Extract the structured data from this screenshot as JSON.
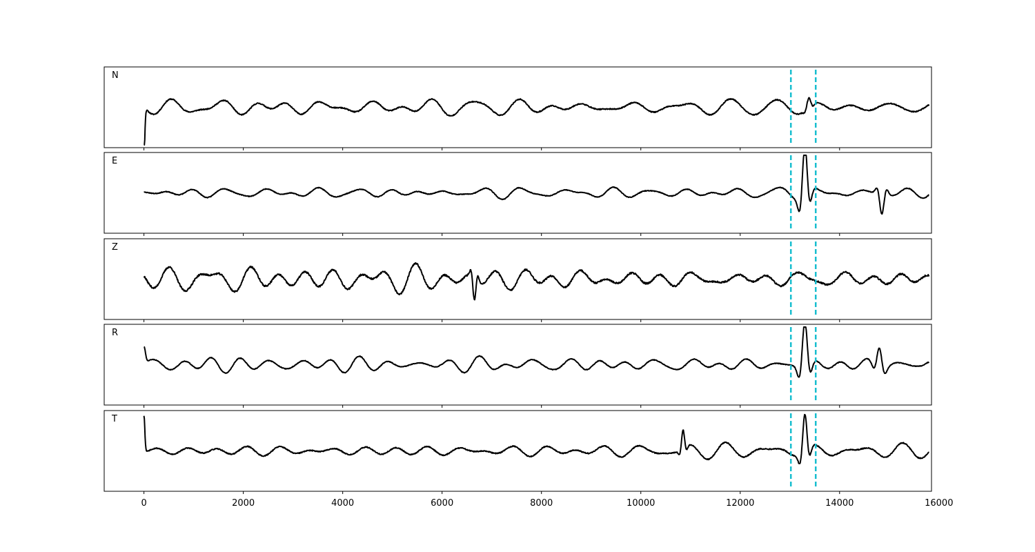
{
  "chart_data": {
    "type": "line",
    "xlim": [
      -800,
      15850
    ],
    "x_ticks": [
      0,
      2000,
      4000,
      6000,
      8000,
      10000,
      12000,
      14000,
      16000
    ],
    "x_tick_labels": [
      "0",
      "2000",
      "4000",
      "6000",
      "8000",
      "10000",
      "12000",
      "14000",
      "16000"
    ],
    "grid": false,
    "n_samples": 15800,
    "pick_lines": [
      13020,
      13520
    ],
    "pick_color": "#17becf",
    "trace_color": "#000000",
    "panels": [
      {
        "label": "N",
        "amplitude": 0.45,
        "seed": 11,
        "transient": {
          "at": 0,
          "amp": -3.2,
          "width": 18
        },
        "events": [
          {
            "at": 13380,
            "amp": 0.6,
            "width": 60
          }
        ]
      },
      {
        "label": "E",
        "amplitude": 0.3,
        "seed": 23,
        "transient": null,
        "events": [
          {
            "at": 13300,
            "amp": 3.4,
            "width": 75
          },
          {
            "at": 14850,
            "amp": -1.4,
            "width": 70
          }
        ]
      },
      {
        "label": "Z",
        "amplitude": 0.75,
        "seed": 37,
        "transient": null,
        "events": [
          {
            "at": 6650,
            "amp": -1.5,
            "width": 50
          }
        ]
      },
      {
        "label": "R",
        "amplitude": 0.3,
        "seed": 41,
        "transient": {
          "at": 0,
          "amp": 1.2,
          "width": 30
        },
        "events": [
          {
            "at": 13300,
            "amp": 3.0,
            "width": 80
          },
          {
            "at": 14800,
            "amp": 1.4,
            "width": 80
          }
        ]
      },
      {
        "label": "T",
        "amplitude": 0.45,
        "seed": 53,
        "transient": {
          "at": 0,
          "amp": 2.5,
          "width": 18
        },
        "events": [
          {
            "at": 13300,
            "amp": 2.5,
            "width": 70
          },
          {
            "at": 10850,
            "amp": 1.2,
            "width": 50
          }
        ]
      }
    ]
  }
}
